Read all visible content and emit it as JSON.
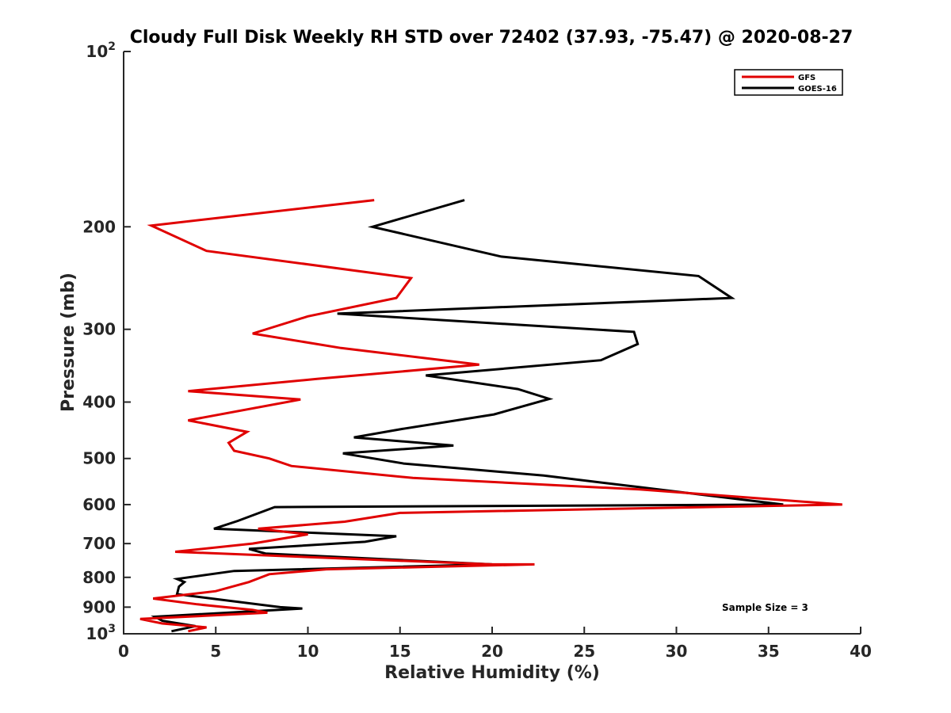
{
  "chart_data": {
    "type": "line",
    "title": "Cloudy Full Disk Weekly RH STD over 72402 (37.93, -75.47) @ 2020-08-27",
    "xlabel": "Relative Humidity (%)",
    "ylabel": "Pressure (mb)",
    "xlim": [
      0,
      40
    ],
    "ylim": [
      100,
      1000
    ],
    "yscale": "log",
    "y_reversed": true,
    "grid": false,
    "legend_position": "top-right",
    "xticks": [
      0,
      5,
      10,
      15,
      20,
      25,
      30,
      35,
      40
    ],
    "xtick_labels": [
      "0",
      "5",
      "10",
      "15",
      "20",
      "25",
      "30",
      "35",
      "40"
    ],
    "yticks": [
      100,
      200,
      300,
      400,
      500,
      600,
      700,
      800,
      900,
      1000
    ],
    "ytick_labels": [
      {
        "base": "10",
        "exp": "2"
      },
      {
        "base": "200"
      },
      {
        "base": "300"
      },
      {
        "base": "400"
      },
      {
        "base": "500"
      },
      {
        "base": "600"
      },
      {
        "base": "700"
      },
      {
        "base": "800"
      },
      {
        "base": "900"
      },
      {
        "base": "10",
        "exp": "3"
      }
    ],
    "annotation": "Sample Size = 3",
    "series": [
      {
        "name": "GFS",
        "color": "#e00000",
        "x": [
          13.6,
          1.5,
          4.5,
          15.6,
          14.8,
          10.0,
          7.0,
          11.8,
          19.3,
          10.5,
          3.5,
          9.6,
          3.5,
          6.7,
          5.7,
          6.0,
          7.9,
          9.1,
          15.7,
          28.0,
          39.0,
          15.0,
          12.0,
          7.3,
          10.0,
          7.0,
          2.8,
          20.0,
          22.3,
          11.0,
          7.9,
          6.8,
          5.0,
          1.6,
          4.0,
          7.0,
          7.8,
          0.9,
          2.1,
          4.5,
          3.5
        ],
        "y": [
          180,
          199,
          220,
          245,
          265,
          285,
          305,
          323,
          345,
          365,
          383,
          396,
          430,
          450,
          470,
          485,
          500,
          515,
          540,
          565,
          600,
          620,
          642,
          660,
          675,
          700,
          723,
          760,
          760,
          775,
          790,
          815,
          845,
          870,
          890,
          910,
          920,
          943,
          960,
          975,
          990
        ]
      },
      {
        "name": "GOES-16",
        "color": "#000000",
        "x": [
          18.5,
          13.5,
          20.5,
          31.2,
          33.0,
          11.6,
          27.7,
          27.9,
          25.9,
          16.4,
          21.4,
          23.1,
          20.1,
          15.1,
          12.5,
          17.9,
          11.9,
          15.2,
          22.8,
          28.0,
          35.8,
          8.2,
          6.2,
          4.9,
          14.8,
          13.1,
          6.8,
          7.7,
          20.0,
          6.0,
          2.9,
          3.3,
          3.0,
          2.9,
          8.5,
          9.7,
          1.7,
          2.1,
          3.9,
          2.6
        ],
        "y": [
          180,
          200,
          225,
          243,
          265,
          282,
          303,
          318,
          339,
          360,
          380,
          395,
          420,
          445,
          460,
          475,
          490,
          510,
          535,
          560,
          600,
          606,
          640,
          660,
          680,
          695,
          715,
          728,
          760,
          780,
          805,
          815,
          830,
          855,
          900,
          905,
          935,
          950,
          970,
          990
        ]
      }
    ]
  }
}
